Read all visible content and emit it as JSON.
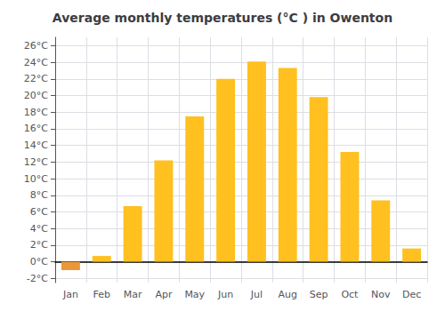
{
  "chart_data": {
    "type": "bar",
    "title": "Average monthly temperatures (°C ) in Owenton",
    "categories": [
      "Jan",
      "Feb",
      "Mar",
      "Apr",
      "May",
      "Jun",
      "Jul",
      "Aug",
      "Sep",
      "Oct",
      "Nov",
      "Dec"
    ],
    "values": [
      -1.0,
      0.7,
      6.7,
      12.2,
      17.5,
      22.0,
      24.1,
      23.3,
      19.8,
      13.2,
      7.4,
      1.6
    ],
    "colors": [
      "#E8973A",
      "#FFC020",
      "#FFC020",
      "#FFC020",
      "#FFC020",
      "#FFC020",
      "#FFC020",
      "#FFC020",
      "#FFC020",
      "#FFC020",
      "#FFC020",
      "#FFC020"
    ],
    "ylim": [
      -2.5,
      27
    ],
    "yticks": [
      {
        "value": -2,
        "label": "-2°C"
      },
      {
        "value": 0,
        "label": "0°C"
      },
      {
        "value": 2,
        "label": "2°C"
      },
      {
        "value": 4,
        "label": "4°C"
      },
      {
        "value": 6,
        "label": "6°C"
      },
      {
        "value": 8,
        "label": "8°C"
      },
      {
        "value": 10,
        "label": "10°C"
      },
      {
        "value": 12,
        "label": "12°C"
      },
      {
        "value": 14,
        "label": "14°C"
      },
      {
        "value": 16,
        "label": "16°C"
      },
      {
        "value": 18,
        "label": "18°C"
      },
      {
        "value": 20,
        "label": "20°C"
      },
      {
        "value": 22,
        "label": "22°C"
      },
      {
        "value": 24,
        "label": "24°C"
      },
      {
        "value": 26,
        "label": "26°C"
      }
    ],
    "grid": true
  }
}
